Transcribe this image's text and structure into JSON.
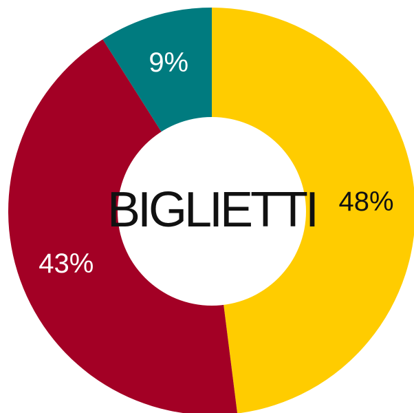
{
  "chart_data": {
    "type": "pie",
    "style": "donut",
    "center_label": "BIGLIETTI",
    "slices": [
      {
        "label": "48%",
        "value": 48,
        "color": "#FFCC00",
        "label_color": "#111111"
      },
      {
        "label": "43%",
        "value": 43,
        "color": "#A30025",
        "label_color": "#ffffff"
      },
      {
        "label": "9%",
        "value": 9,
        "color": "#007B7F",
        "label_color": "#ffffff"
      }
    ]
  }
}
